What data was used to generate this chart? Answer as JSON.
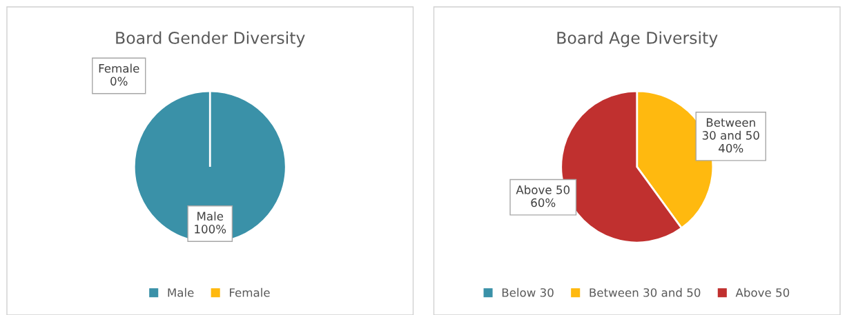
{
  "chart_data": [
    {
      "type": "pie",
      "title": "Board Gender Diversity",
      "categories": [
        "Male",
        "Female"
      ],
      "values": [
        100,
        0
      ],
      "colors": [
        "#3a91a8",
        "#ffb90f"
      ],
      "value_labels": [
        "Male\n100%",
        "Female\n0%"
      ],
      "legend": "bottom"
    },
    {
      "type": "pie",
      "title": "Board Age Diversity",
      "categories": [
        "Below 30",
        "Between 30 and 50",
        "Above 50"
      ],
      "values": [
        0,
        40,
        60
      ],
      "colors": [
        "#3a91a8",
        "#ffb90f",
        "#c0302f"
      ],
      "value_labels": [
        null,
        "Between\n30 and 50\n40%",
        "Above 50\n60%"
      ],
      "legend": "bottom"
    }
  ]
}
